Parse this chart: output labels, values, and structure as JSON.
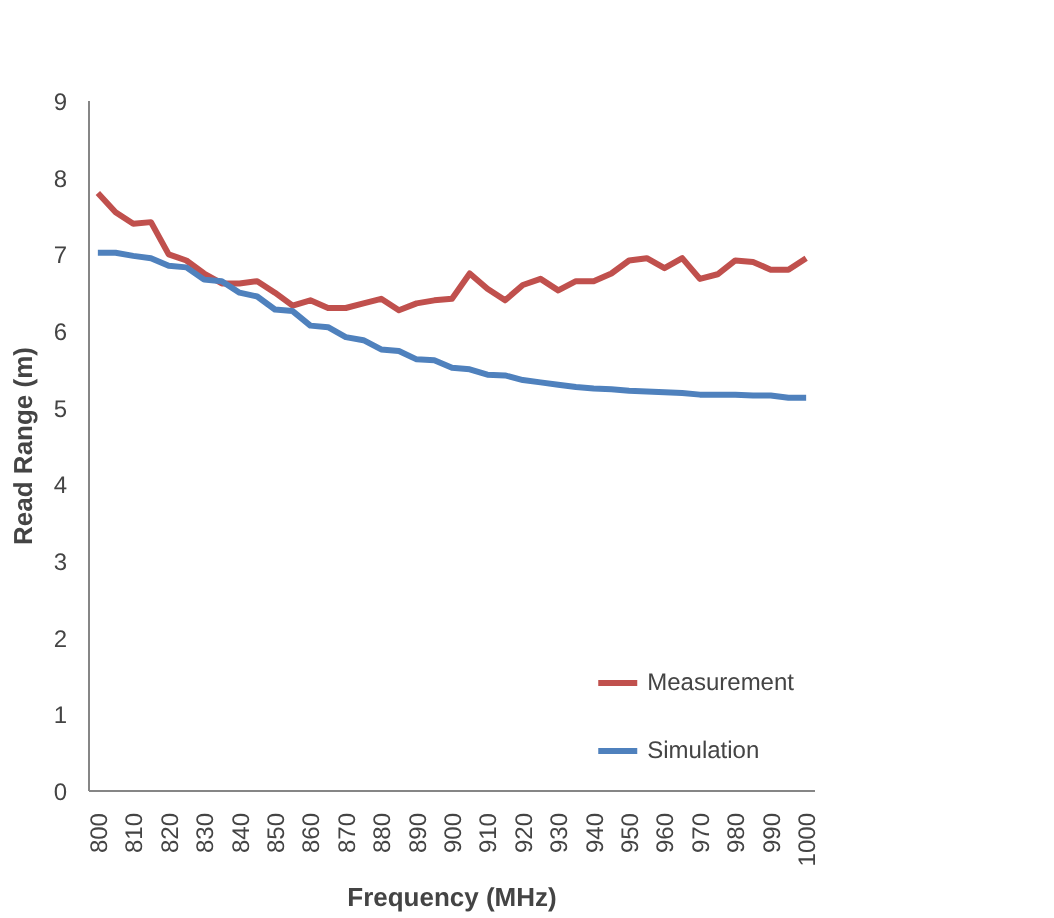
{
  "chart_data": {
    "type": "line",
    "xlabel": "Frequency (MHz)",
    "ylabel": "Read Range (m)",
    "categories": [
      "800",
      null,
      "810",
      null,
      "820",
      null,
      "830",
      null,
      "840",
      null,
      "850",
      null,
      "860",
      null,
      "870",
      null,
      "880",
      null,
      "890",
      null,
      "900",
      null,
      "910",
      null,
      "920",
      null,
      "930",
      null,
      "940",
      null,
      "950",
      null,
      "960",
      null,
      "970",
      null,
      "980",
      null,
      "990",
      null,
      "1000"
    ],
    "series": [
      {
        "name": "Measurement",
        "color": "#c0504d",
        "values": [
          7.8,
          7.55,
          7.4,
          7.42,
          7.0,
          6.92,
          6.75,
          6.62,
          6.62,
          6.65,
          6.5,
          6.33,
          6.4,
          6.3,
          6.3,
          6.36,
          6.42,
          6.27,
          6.36,
          6.4,
          6.42,
          6.75,
          6.55,
          6.4,
          6.6,
          6.68,
          6.53,
          6.65,
          6.65,
          6.75,
          6.92,
          6.95,
          6.82,
          6.95,
          6.68,
          6.74,
          6.92,
          6.9,
          6.8,
          6.8,
          6.95
        ]
      },
      {
        "name": "Simulation",
        "color": "#4f81bd",
        "values": [
          7.02,
          7.02,
          6.98,
          6.95,
          6.85,
          6.83,
          6.67,
          6.65,
          6.5,
          6.45,
          6.28,
          6.26,
          6.07,
          6.05,
          5.92,
          5.88,
          5.76,
          5.74,
          5.63,
          5.62,
          5.52,
          5.5,
          5.43,
          5.42,
          5.36,
          5.33,
          5.3,
          5.27,
          5.25,
          5.24,
          5.22,
          5.21,
          5.2,
          5.19,
          5.17,
          5.17,
          5.17,
          5.16,
          5.16,
          5.13,
          5.13
        ]
      }
    ],
    "ylim": [
      0,
      9
    ],
    "yticks": [
      0,
      1,
      2,
      3,
      4,
      5,
      6,
      7,
      8,
      9
    ],
    "grid": false,
    "legend": "bottom right",
    "marker": "none",
    "line_style": "solid"
  }
}
